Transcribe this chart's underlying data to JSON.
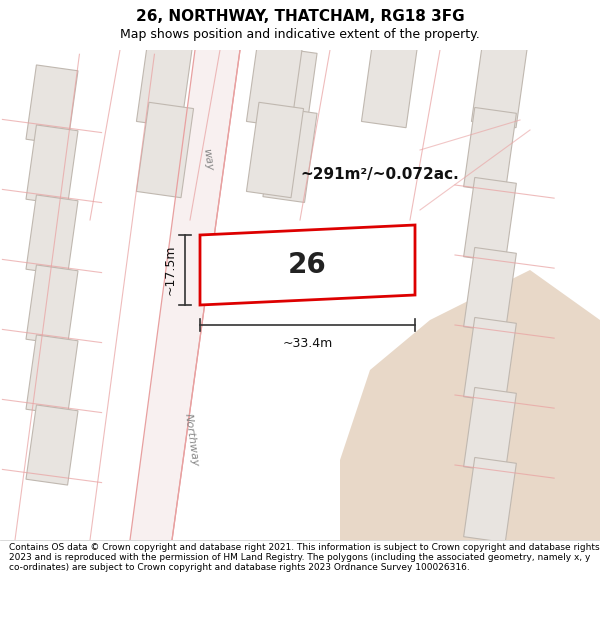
{
  "title_line1": "26, NORTHWAY, THATCHAM, RG18 3FG",
  "title_line2": "Map shows position and indicative extent of the property.",
  "footer_text": "Contains OS data © Crown copyright and database right 2021. This information is subject to Crown copyright and database rights 2023 and is reproduced with the permission of HM Land Registry. The polygons (including the associated geometry, namely x, y co-ordinates) are subject to Crown copyright and database rights 2023 Ordnance Survey 100026316.",
  "map_bg_color": "#f7f5f3",
  "road_color": "#e8a0a0",
  "plot_edge_color": "#dd0000",
  "building_fill_color": "#e8e4e0",
  "building_edge_color": "#c0b8b0",
  "open_land_color": "#e8d8c8",
  "label_26": "26",
  "area_label": "~291m²/~0.072ac.",
  "dim_width": "~33.4m",
  "dim_height": "~17.5m",
  "road_label_upper": "way",
  "road_label_lower": "Northway",
  "title_fontsize": 11,
  "subtitle_fontsize": 9,
  "footer_fontsize": 6.5
}
